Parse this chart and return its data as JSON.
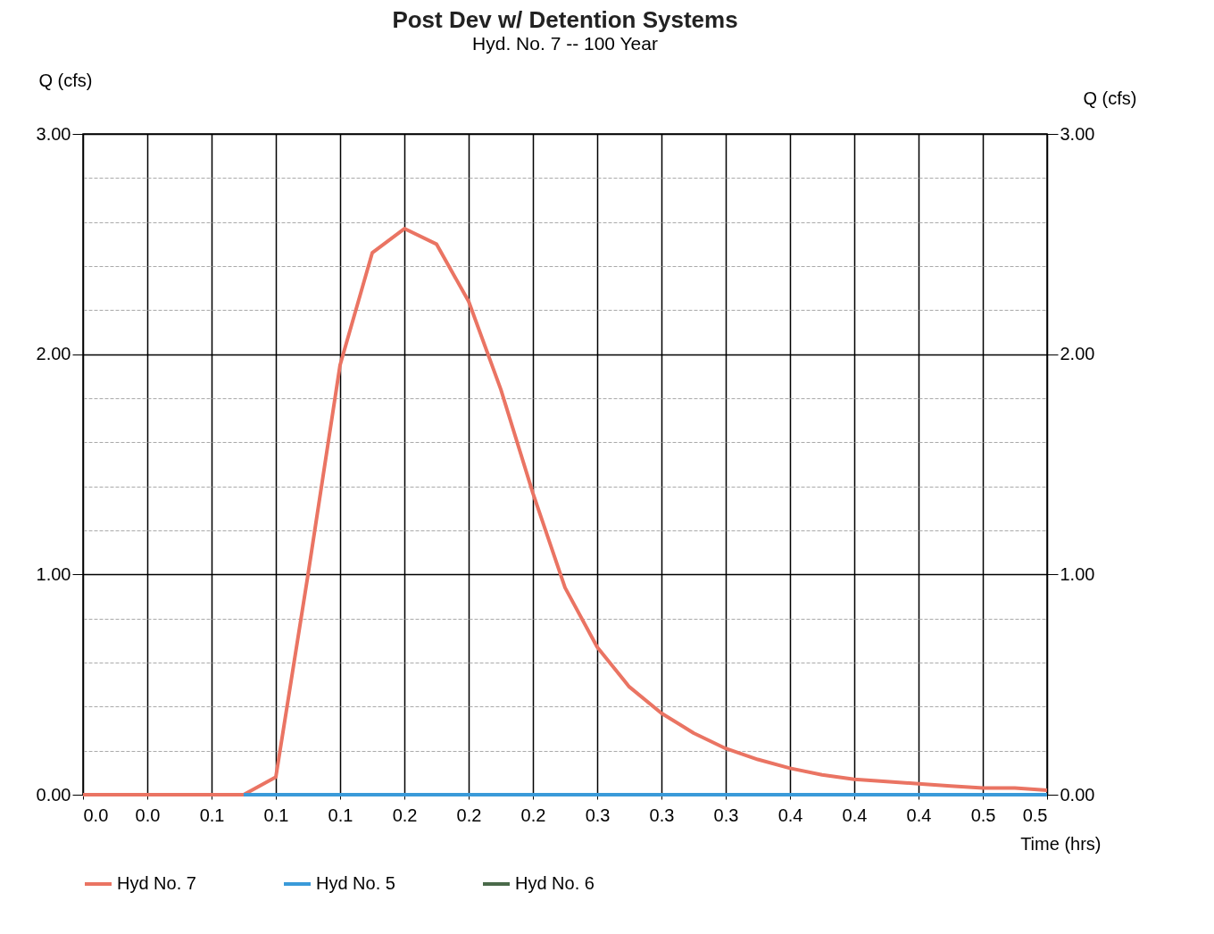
{
  "chart_data": {
    "type": "line",
    "title": "Post Dev w/ Detention Systems",
    "subtitle": "Hyd. No. 7 -- 100 Year",
    "xlabel": "Time (hrs)",
    "ylabel": "Q (cfs)",
    "y2label": "Q (cfs)",
    "xlim": [
      0,
      0.5
    ],
    "ylim": [
      0,
      3
    ],
    "y2lim": [
      0,
      3
    ],
    "xticks": [
      {
        "value": 0,
        "label": "0.0"
      },
      {
        "value": 0.0333,
        "label": "0.0"
      },
      {
        "value": 0.0667,
        "label": "0.1"
      },
      {
        "value": 0.1,
        "label": "0.1"
      },
      {
        "value": 0.1333,
        "label": "0.1"
      },
      {
        "value": 0.1667,
        "label": "0.2"
      },
      {
        "value": 0.2,
        "label": "0.2"
      },
      {
        "value": 0.2333,
        "label": "0.2"
      },
      {
        "value": 0.2667,
        "label": "0.3"
      },
      {
        "value": 0.3,
        "label": "0.3"
      },
      {
        "value": 0.3333,
        "label": "0.3"
      },
      {
        "value": 0.3667,
        "label": "0.4"
      },
      {
        "value": 0.4,
        "label": "0.4"
      },
      {
        "value": 0.4333,
        "label": "0.4"
      },
      {
        "value": 0.4667,
        "label": "0.5"
      },
      {
        "value": 0.5,
        "label": "0.5"
      }
    ],
    "yticks": [
      {
        "value": 0,
        "label": "0.00"
      },
      {
        "value": 0.2,
        "label": null
      },
      {
        "value": 0.4,
        "label": null
      },
      {
        "value": 0.6,
        "label": null
      },
      {
        "value": 0.8,
        "label": null
      },
      {
        "value": 1,
        "label": "1.00"
      },
      {
        "value": 1.2,
        "label": null
      },
      {
        "value": 1.4,
        "label": null
      },
      {
        "value": 1.6,
        "label": null
      },
      {
        "value": 1.8,
        "label": null
      },
      {
        "value": 2,
        "label": "2.00"
      },
      {
        "value": 2.2,
        "label": null
      },
      {
        "value": 2.4,
        "label": null
      },
      {
        "value": 2.6,
        "label": null
      },
      {
        "value": 2.8,
        "label": null
      },
      {
        "value": 3,
        "label": "3.00"
      }
    ],
    "y2ticks": [
      {
        "value": 0,
        "label": "0.00"
      },
      {
        "value": 1,
        "label": "1.00"
      },
      {
        "value": 2,
        "label": "2.00"
      },
      {
        "value": 3,
        "label": "3.00"
      }
    ],
    "grid": true,
    "legend": "bottom",
    "line_style": "solid",
    "marker": "none",
    "x": [
      0,
      0.0167,
      0.0333,
      0.05,
      0.0667,
      0.0833,
      0.1,
      0.1167,
      0.1333,
      0.15,
      0.1667,
      0.1833,
      0.2,
      0.2167,
      0.2333,
      0.25,
      0.2667,
      0.2833,
      0.3,
      0.3167,
      0.3333,
      0.35,
      0.3667,
      0.3833,
      0.4,
      0.4167,
      0.4333,
      0.45,
      0.4667,
      0.4833,
      0.5
    ],
    "series": [
      {
        "name": "Hyd No. 7",
        "color": "#ea7463",
        "values": [
          0,
          0,
          0,
          0,
          0,
          0,
          0.08,
          1.0,
          1.95,
          2.46,
          2.57,
          2.5,
          2.24,
          1.84,
          1.37,
          0.94,
          0.67,
          0.49,
          0.37,
          0.28,
          0.21,
          0.16,
          0.12,
          0.09,
          0.07,
          0.06,
          0.05,
          0.04,
          0.03,
          0.03,
          0.02
        ]
      },
      {
        "name": "Hyd No. 5",
        "color": "#3a9ad9",
        "x": [
          0.0833,
          0.5
        ],
        "values": [
          0,
          0
        ]
      },
      {
        "name": "Hyd No. 6",
        "color": "#4a6a4a",
        "values": [
          null,
          null,
          null,
          null,
          null,
          null,
          null,
          null,
          null,
          null,
          null,
          null,
          null,
          null,
          null,
          null,
          null,
          null,
          null,
          null,
          null,
          null,
          null,
          null,
          null,
          null,
          null,
          null,
          null,
          null,
          null
        ]
      }
    ]
  }
}
